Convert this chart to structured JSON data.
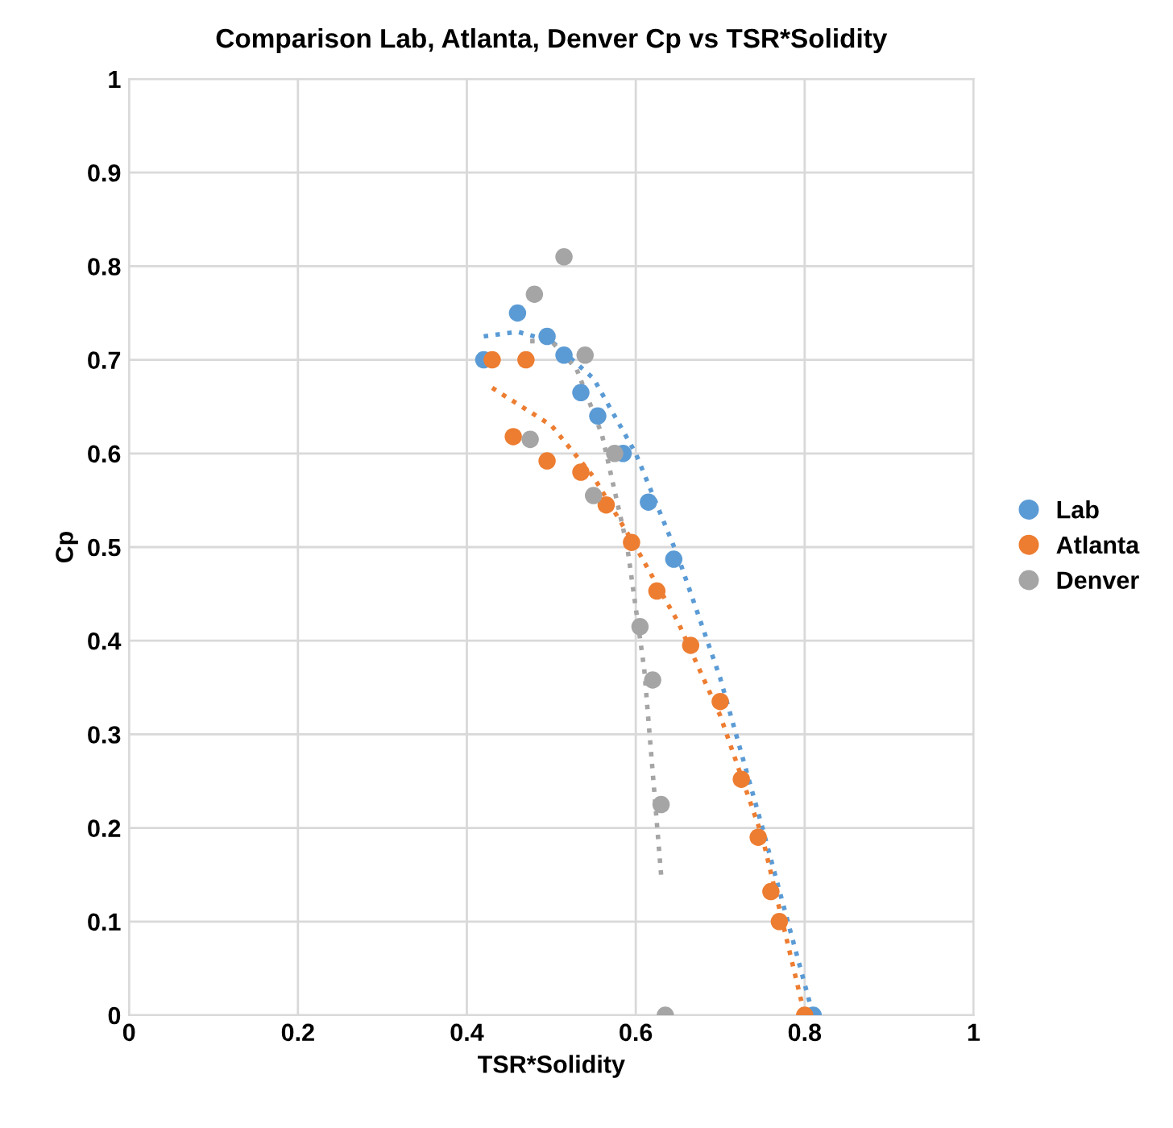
{
  "chart_data": {
    "type": "scatter",
    "title": "Comparison Lab, Atlanta, Denver Cp vs TSR*Solidity",
    "xlabel": "TSR*Solidity",
    "ylabel": "Cp",
    "xlim": [
      0,
      1
    ],
    "xticks": [
      0,
      0.2,
      0.4,
      0.6,
      0.8,
      1
    ],
    "ylim": [
      0,
      1
    ],
    "yticks": [
      0,
      0.1,
      0.2,
      0.3,
      0.4,
      0.5,
      0.6,
      0.7,
      0.8,
      0.9,
      1
    ],
    "grid": true,
    "legend": "right",
    "marker": "circle",
    "series": [
      {
        "name": "Lab",
        "color": "#5b9bd5",
        "x": [
          0.42,
          0.46,
          0.495,
          0.515,
          0.535,
          0.555,
          0.585,
          0.615,
          0.645,
          0.81
        ],
        "values": [
          0.7,
          0.75,
          0.725,
          0.705,
          0.665,
          0.64,
          0.6,
          0.548,
          0.487,
          0.0
        ]
      },
      {
        "name": "Atlanta",
        "color": "#ed7d31",
        "x": [
          0.43,
          0.455,
          0.47,
          0.495,
          0.535,
          0.565,
          0.595,
          0.625,
          0.665,
          0.7,
          0.725,
          0.745,
          0.76,
          0.77,
          0.8
        ],
        "values": [
          0.7,
          0.618,
          0.7,
          0.592,
          0.58,
          0.545,
          0.505,
          0.453,
          0.395,
          0.335,
          0.252,
          0.19,
          0.132,
          0.1,
          0.0
        ]
      },
      {
        "name": "Denver",
        "color": "#a5a5a5",
        "x": [
          0.475,
          0.48,
          0.515,
          0.54,
          0.55,
          0.575,
          0.605,
          0.62,
          0.63,
          0.635
        ],
        "values": [
          0.615,
          0.77,
          0.81,
          0.705,
          0.555,
          0.6,
          0.415,
          0.358,
          0.225,
          0.0
        ]
      },
      {
        "type": "line",
        "line_style": "dotted",
        "marker": "none",
        "color": "#5b9bd5",
        "x": [
          0.42,
          0.46,
          0.5,
          0.55,
          0.6,
          0.65,
          0.7,
          0.75,
          0.81
        ],
        "values": [
          0.725,
          0.73,
          0.72,
          0.68,
          0.6,
          0.49,
          0.36,
          0.2,
          0.0
        ]
      },
      {
        "type": "line",
        "line_style": "dotted",
        "marker": "none",
        "color": "#ed7d31",
        "x": [
          0.43,
          0.5,
          0.55,
          0.6,
          0.65,
          0.7,
          0.75,
          0.8
        ],
        "values": [
          0.67,
          0.63,
          0.575,
          0.5,
          0.42,
          0.32,
          0.19,
          0.0
        ]
      },
      {
        "type": "line",
        "line_style": "dotted",
        "marker": "none",
        "color": "#a5a5a5",
        "x": [
          0.475,
          0.5,
          0.53,
          0.56,
          0.59,
          0.61,
          0.63
        ],
        "values": [
          0.72,
          0.72,
          0.69,
          0.62,
          0.5,
          0.37,
          0.15
        ]
      }
    ]
  }
}
